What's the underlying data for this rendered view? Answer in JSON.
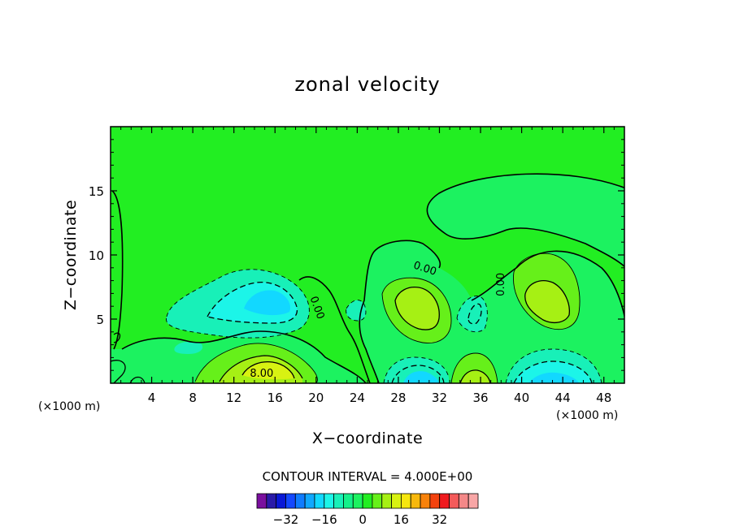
{
  "chart_data": {
    "type": "contour",
    "title": "zonal velocity",
    "xlabel": "X−coordinate",
    "ylabel": "Z−coordinate",
    "x_unit": "(×1000 m)",
    "xlim": [
      0,
      50
    ],
    "ylim": [
      0,
      20
    ],
    "x_ticks": [
      4,
      8,
      12,
      16,
      20,
      24,
      28,
      32,
      36,
      40,
      44,
      48
    ],
    "y_ticks": [
      5,
      10,
      15
    ],
    "contour_interval_text": "CONTOUR INTERVAL = 4.000E+00",
    "contour_interval": 4,
    "background_color": "#22ee22",
    "contour_labels": [
      {
        "text": "0.00",
        "x": 30.5,
        "z": 8.7,
        "angle": 18
      },
      {
        "text": "0.00",
        "x": 38.3,
        "z": 7.7,
        "angle": -90
      },
      {
        "text": "0.00",
        "x": 19.8,
        "z": 5.8,
        "angle": 70
      },
      {
        "text": "8.00",
        "x": 14.7,
        "z": 0.5,
        "angle": 0
      }
    ],
    "features": [
      {
        "kind": "negative",
        "x": 15,
        "z": 6.5,
        "peak": -14
      },
      {
        "kind": "positive",
        "x": 14.5,
        "z": 1.4,
        "peak": 13
      },
      {
        "kind": "positive",
        "x": 29.5,
        "z": 6.2,
        "peak": 11
      },
      {
        "kind": "positive",
        "x": 42.5,
        "z": 6.5,
        "peak": 11
      },
      {
        "kind": "negative",
        "x": 29.5,
        "z": 0.4,
        "peak": -13
      },
      {
        "kind": "negative",
        "x": 43,
        "z": 0.4,
        "peak": -13
      },
      {
        "kind": "positive",
        "x": 35,
        "z": 0.6,
        "peak": 10
      },
      {
        "kind": "negative",
        "x": 35.3,
        "z": 5.5,
        "peak": -7
      }
    ],
    "colorbar": {
      "colors": [
        "#7a0f9e",
        "#2a1aa8",
        "#0a18d6",
        "#1448ff",
        "#0f7cff",
        "#10a8ff",
        "#12d8ff",
        "#1cf5e8",
        "#18f0b8",
        "#14f08a",
        "#1cf260",
        "#22ee22",
        "#66f01a",
        "#a6f014",
        "#d8f212",
        "#f6e60e",
        "#f8b80c",
        "#f8820a",
        "#f4420e",
        "#f01a1e",
        "#f45a5a",
        "#f48888",
        "#f8a6a6"
      ],
      "tick_labels": [
        "−32",
        "−16",
        "0",
        "16",
        "32"
      ],
      "tick_values": [
        -32,
        -16,
        0,
        16,
        32
      ],
      "min": -44,
      "max": 48
    }
  }
}
